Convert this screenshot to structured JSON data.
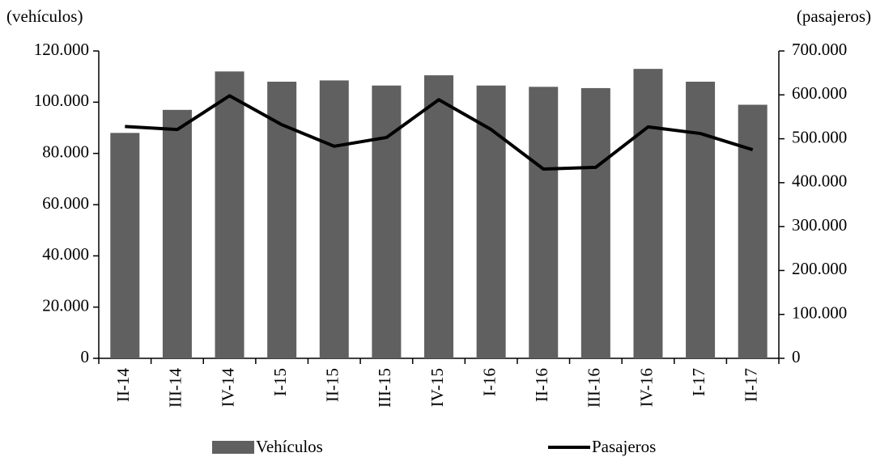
{
  "chart_data": {
    "type": "bar",
    "y_label": "(vehículos)",
    "y2_label": "(pasajeros)",
    "categories": [
      "II-14",
      "III-14",
      "IV-14",
      "I-15",
      "II-15",
      "III-15",
      "IV-15",
      "I-16",
      "II-16",
      "III-16",
      "IV-16",
      "I-17",
      "II-17"
    ],
    "series": [
      {
        "name": "Vehículos",
        "type": "bar",
        "color": "#606060",
        "values": [
          88000,
          97000,
          112000,
          108000,
          108500,
          106500,
          110500,
          106500,
          106000,
          105500,
          113000,
          108000,
          99000
        ]
      },
      {
        "name": "Pasajeros",
        "type": "line",
        "axis": "y2",
        "color": "#000000",
        "values": [
          528000,
          521000,
          598000,
          532000,
          483000,
          503000,
          589000,
          521000,
          431000,
          435000,
          527000,
          512000,
          475000
        ]
      }
    ],
    "ylim": [
      0,
      120000
    ],
    "yticks": [
      0,
      {
        "value": 20000,
        "label": "20.000"
      },
      {
        "value": 40000,
        "label": "40.000"
      },
      {
        "value": 60000,
        "label": "60.000"
      },
      {
        "value": 80000,
        "label": "80.000"
      },
      {
        "value": 100000,
        "label": "100.000"
      },
      {
        "value": 120000,
        "label": "120.000"
      }
    ],
    "y2lim": [
      0,
      700000
    ],
    "y2ticks": [
      0,
      {
        "value": 100000,
        "label": "100.000"
      },
      {
        "value": 200000,
        "label": "200.000"
      },
      {
        "value": 300000,
        "label": "300.000"
      },
      {
        "value": 400000,
        "label": "400.000"
      },
      {
        "value": 500000,
        "label": "500.000"
      },
      {
        "value": 600000,
        "label": "600.000"
      },
      {
        "value": 700000,
        "label": "700.000"
      }
    ],
    "legend": "bottom"
  }
}
